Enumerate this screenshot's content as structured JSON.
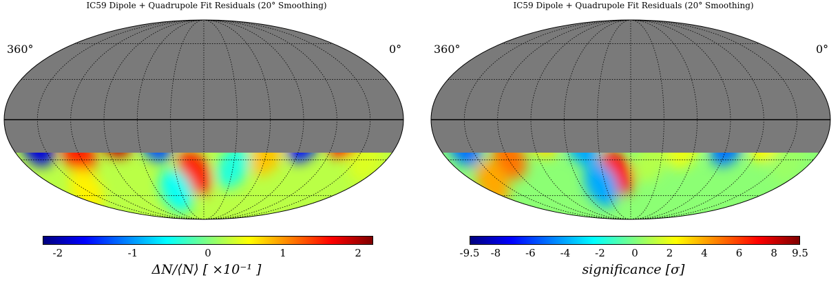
{
  "colorscale": [
    "#00007f",
    "#0000ff",
    "#0080ff",
    "#00ffff",
    "#80ff80",
    "#ffff00",
    "#ff8000",
    "#ff0000",
    "#7f0000"
  ],
  "masked_color": "#7a7a7a",
  "chart_data": [
    {
      "type": "heatmap",
      "projection": "Mollweide sky map",
      "title": "IC59 Dipole + Quadrupole Fit Residuals (20° Smoothing)",
      "longitude_labels": {
        "left": "360°",
        "right": "0°"
      },
      "masked_region": "upper part of the map (no data, gray)",
      "colorbar": {
        "label": "ΔN/⟨N⟩ [ ×10⁻¹ ]",
        "ticks": [
          "-2",
          "-1",
          "0",
          "1",
          "2"
        ],
        "tick_values": [
          -2,
          -1,
          0,
          1,
          2
        ],
        "range": [
          -2.2,
          2.2
        ]
      },
      "features": [
        {
          "lon": 335,
          "lat": -18,
          "value": -1.8
        },
        {
          "lon": 300,
          "lat": -25,
          "value": 1.5
        },
        {
          "lon": 262,
          "lat": -12,
          "value": 1.9
        },
        {
          "lon": 225,
          "lat": -15,
          "value": -1.3
        },
        {
          "lon": 190,
          "lat": -40,
          "value": 1.5
        },
        {
          "lon": 150,
          "lat": -35,
          "value": -0.4
        },
        {
          "lon": 120,
          "lat": -25,
          "value": 0.8
        },
        {
          "lon": 88,
          "lat": -15,
          "value": -1.6
        },
        {
          "lon": 50,
          "lat": -12,
          "value": 1.6
        },
        {
          "lon": 20,
          "lat": -30,
          "value": 0.4
        },
        {
          "lon": 215,
          "lat": -55,
          "value": -0.5
        },
        {
          "lon": 330,
          "lat": -55,
          "value": 0.6
        }
      ]
    },
    {
      "type": "heatmap",
      "projection": "Mollweide sky map",
      "title": "IC59 Dipole + Quadrupole Fit Residuals (20° Smoothing)",
      "longitude_labels": {
        "left": "360°",
        "right": "0°"
      },
      "masked_region": "upper part of the map (no data, gray)",
      "colorbar": {
        "label": "significance [σ]",
        "ticks": [
          "-9.5",
          "-8",
          "-6",
          "-4",
          "-2",
          "0",
          "2",
          "4",
          "6",
          "8",
          "9.5"
        ],
        "tick_values": [
          -9.5,
          -8,
          -6,
          -4,
          -2,
          0,
          2,
          4,
          6,
          8,
          9.5
        ],
        "range": [
          -9.5,
          9.5
        ]
      },
      "features": [
        {
          "lon": 335,
          "lat": -18,
          "value": -5
        },
        {
          "lon": 298,
          "lat": -28,
          "value": 5
        },
        {
          "lon": 262,
          "lat": -12,
          "value": 3
        },
        {
          "lon": 225,
          "lat": -18,
          "value": -4
        },
        {
          "lon": 195,
          "lat": -40,
          "value": 7
        },
        {
          "lon": 160,
          "lat": -30,
          "value": 1
        },
        {
          "lon": 130,
          "lat": -20,
          "value": 2
        },
        {
          "lon": 90,
          "lat": -18,
          "value": -5
        },
        {
          "lon": 55,
          "lat": -15,
          "value": 2.5
        },
        {
          "lon": 215,
          "lat": -50,
          "value": -4
        },
        {
          "lon": 340,
          "lat": -48,
          "value": 4
        },
        {
          "lon": 25,
          "lat": -30,
          "value": 0.5
        }
      ]
    }
  ]
}
